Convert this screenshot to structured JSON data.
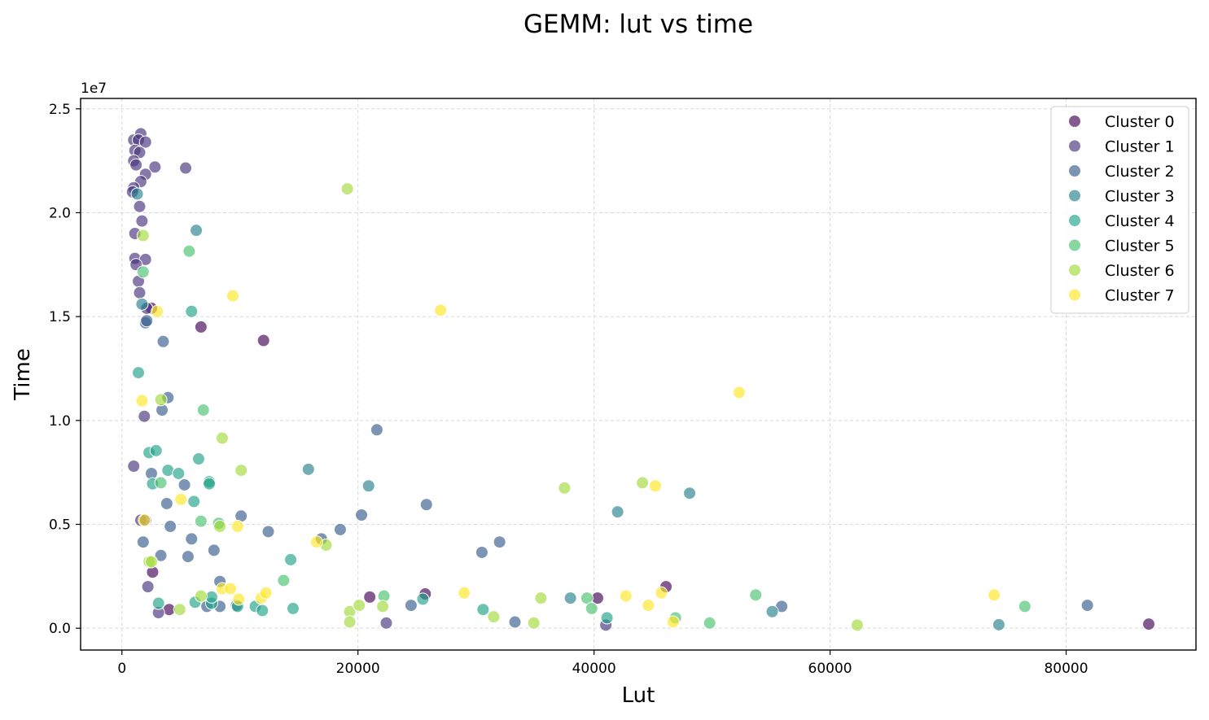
{
  "chart_data": {
    "type": "scatter",
    "title": "GEMM: lut vs time",
    "xlabel": "Lut",
    "ylabel": "Time",
    "y_offset_text": "1e7",
    "xlim": [
      -3500,
      91000
    ],
    "ylim": [
      -1050000,
      25500000
    ],
    "x_ticks": [
      0,
      20000,
      40000,
      60000,
      80000
    ],
    "x_tick_labels": [
      "0",
      "20000",
      "40000",
      "60000",
      "80000"
    ],
    "y_ticks": [
      0,
      5000000,
      10000000,
      15000000,
      20000000,
      25000000
    ],
    "y_tick_labels": [
      "0.0",
      "0.5",
      "1.0",
      "1.5",
      "2.0",
      "2.5"
    ],
    "grid": true,
    "legend_position": "top-right",
    "series": [
      {
        "name": "Cluster 0",
        "color": "#440154",
        "points": [
          [
            6700,
            14500000
          ],
          [
            12000,
            13850000
          ],
          [
            2500,
            15400000
          ],
          [
            2600,
            2700000
          ],
          [
            4000,
            900000
          ],
          [
            21000,
            1500000
          ],
          [
            25700,
            1650000
          ],
          [
            40300,
            1450000
          ],
          [
            46100,
            2000000
          ],
          [
            87000,
            200000
          ]
        ]
      },
      {
        "name": "Cluster 1",
        "color": "#46327e",
        "points": [
          [
            1000,
            23500000
          ],
          [
            1600,
            23800000
          ],
          [
            1400,
            23500000
          ],
          [
            2000,
            23400000
          ],
          [
            1100,
            23000000
          ],
          [
            1500,
            22900000
          ],
          [
            1000,
            22500000
          ],
          [
            1200,
            22300000
          ],
          [
            2800,
            22200000
          ],
          [
            5400,
            22150000
          ],
          [
            2000,
            21850000
          ],
          [
            1600,
            21500000
          ],
          [
            1000,
            21200000
          ],
          [
            900,
            21000000
          ],
          [
            1500,
            20300000
          ],
          [
            1100,
            19000000
          ],
          [
            1700,
            19600000
          ],
          [
            1100,
            17800000
          ],
          [
            2000,
            17750000
          ],
          [
            1200,
            17500000
          ],
          [
            1400,
            16700000
          ],
          [
            1500,
            16150000
          ],
          [
            2100,
            15400000
          ],
          [
            1900,
            10200000
          ],
          [
            1000,
            7800000
          ],
          [
            1600,
            5200000
          ],
          [
            2000,
            5200000
          ],
          [
            2200,
            2000000
          ],
          [
            3100,
            750000
          ],
          [
            22400,
            250000
          ],
          [
            41000,
            150000
          ]
        ]
      },
      {
        "name": "Cluster 2",
        "color": "#365c8d",
        "points": [
          [
            2000,
            14700000
          ],
          [
            2100,
            14800000
          ],
          [
            3500,
            13800000
          ],
          [
            3900,
            11100000
          ],
          [
            3400,
            10500000
          ],
          [
            2500,
            7450000
          ],
          [
            3800,
            6000000
          ],
          [
            5300,
            6900000
          ],
          [
            10100,
            5400000
          ],
          [
            4100,
            4900000
          ],
          [
            5900,
            4300000
          ],
          [
            1800,
            4150000
          ],
          [
            12400,
            4650000
          ],
          [
            16900,
            4300000
          ],
          [
            18500,
            4750000
          ],
          [
            20300,
            5450000
          ],
          [
            21600,
            9550000
          ],
          [
            25800,
            5950000
          ],
          [
            30500,
            3650000
          ],
          [
            32000,
            4150000
          ],
          [
            3300,
            3500000
          ],
          [
            5600,
            3450000
          ],
          [
            7800,
            3750000
          ],
          [
            8300,
            2250000
          ],
          [
            8300,
            1050000
          ],
          [
            7200,
            1050000
          ],
          [
            9700,
            1100000
          ],
          [
            24500,
            1100000
          ],
          [
            33300,
            300000
          ],
          [
            55900,
            1050000
          ],
          [
            81800,
            1100000
          ]
        ]
      },
      {
        "name": "Cluster 3",
        "color": "#277f8e",
        "points": [
          [
            6300,
            19150000
          ],
          [
            1300,
            20900000
          ],
          [
            1700,
            15600000
          ],
          [
            15800,
            7650000
          ],
          [
            20900,
            6850000
          ],
          [
            42000,
            5600000
          ],
          [
            48100,
            6500000
          ],
          [
            38000,
            1450000
          ],
          [
            55100,
            800000
          ],
          [
            74300,
            170000
          ]
        ]
      },
      {
        "name": "Cluster 4",
        "color": "#1fa187",
        "points": [
          [
            1400,
            12300000
          ],
          [
            5900,
            15250000
          ],
          [
            2300,
            8450000
          ],
          [
            2900,
            8550000
          ],
          [
            3900,
            7600000
          ],
          [
            6500,
            8150000
          ],
          [
            4800,
            7450000
          ],
          [
            7400,
            7050000
          ],
          [
            7400,
            6950000
          ],
          [
            2600,
            6950000
          ],
          [
            6100,
            6100000
          ],
          [
            14300,
            3300000
          ],
          [
            3100,
            1200000
          ],
          [
            6200,
            1250000
          ],
          [
            7600,
            1200000
          ],
          [
            7600,
            1500000
          ],
          [
            9800,
            1050000
          ],
          [
            11300,
            1050000
          ],
          [
            11900,
            850000
          ],
          [
            14500,
            950000
          ],
          [
            25500,
            1400000
          ],
          [
            30600,
            900000
          ],
          [
            41100,
            500000
          ]
        ]
      },
      {
        "name": "Cluster 5",
        "color": "#4ac16d",
        "points": [
          [
            5700,
            18150000
          ],
          [
            1800,
            17150000
          ],
          [
            6900,
            10500000
          ],
          [
            3300,
            7000000
          ],
          [
            6700,
            5150000
          ],
          [
            8200,
            5050000
          ],
          [
            13700,
            2300000
          ],
          [
            22200,
            1550000
          ],
          [
            39400,
            1450000
          ],
          [
            39800,
            950000
          ],
          [
            46900,
            500000
          ],
          [
            49800,
            250000
          ],
          [
            53700,
            1600000
          ],
          [
            76500,
            1050000
          ]
        ]
      },
      {
        "name": "Cluster 6",
        "color": "#a0da39",
        "points": [
          [
            1800,
            18900000
          ],
          [
            19100,
            21150000
          ],
          [
            3300,
            11000000
          ],
          [
            8500,
            9150000
          ],
          [
            10100,
            7600000
          ],
          [
            17300,
            4000000
          ],
          [
            2300,
            3200000
          ],
          [
            2500,
            3200000
          ],
          [
            4900,
            900000
          ],
          [
            8300,
            4900000
          ],
          [
            6700,
            1550000
          ],
          [
            19300,
            800000
          ],
          [
            19300,
            300000
          ],
          [
            20100,
            1100000
          ],
          [
            22100,
            1050000
          ],
          [
            31500,
            550000
          ],
          [
            34900,
            250000
          ],
          [
            35500,
            1450000
          ],
          [
            37500,
            6750000
          ],
          [
            44100,
            7000000
          ],
          [
            62300,
            150000
          ]
        ]
      },
      {
        "name": "Cluster 7",
        "color": "#fde725",
        "points": [
          [
            3000,
            15250000
          ],
          [
            9400,
            16000000
          ],
          [
            27000,
            15300000
          ],
          [
            1700,
            10950000
          ],
          [
            1900,
            5200000
          ],
          [
            5000,
            6200000
          ],
          [
            9800,
            4900000
          ],
          [
            16500,
            4150000
          ],
          [
            8500,
            1900000
          ],
          [
            9200,
            1900000
          ],
          [
            9900,
            1400000
          ],
          [
            11800,
            1450000
          ],
          [
            12200,
            1700000
          ],
          [
            29000,
            1700000
          ],
          [
            42700,
            1550000
          ],
          [
            44600,
            1100000
          ],
          [
            45200,
            6850000
          ],
          [
            45700,
            1700000
          ],
          [
            46700,
            300000
          ],
          [
            52300,
            11350000
          ],
          [
            73900,
            1600000
          ]
        ]
      }
    ]
  }
}
